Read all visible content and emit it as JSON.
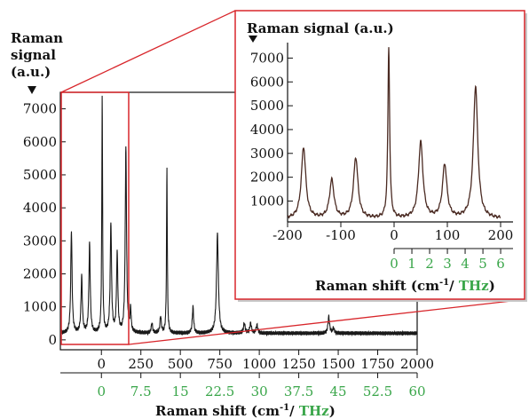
{
  "colors": {
    "main_trace": "#1a1a1a",
    "inset_trace": "#4a2a22",
    "zoom_box": "#d8262b",
    "thz_label": "#3aa64a",
    "axis": "#111111"
  },
  "chart_data": [
    {
      "type": "line",
      "id": "main",
      "ylabel_lines": [
        "Raman",
        "signal",
        "(a.u.)"
      ],
      "xlabel_prefix": "Raman shift (cm",
      "xlabel_sup": "-1",
      "xlabel_sep": "/ ",
      "xlabel_thz": "THz",
      "xlabel_close": ")",
      "xlim": [
        -260,
        2000
      ],
      "ylim": [
        -300,
        7500
      ],
      "x_ticks": [
        0,
        250,
        500,
        750,
        1000,
        1250,
        1500,
        1750,
        2000
      ],
      "y_ticks": [
        0,
        1000,
        2000,
        3000,
        4000,
        5000,
        6000,
        7000
      ],
      "thz_ticks": [
        {
          "label": "0",
          "cm": 0
        },
        {
          "label": "7.5",
          "cm": 250
        },
        {
          "label": "15",
          "cm": 500
        },
        {
          "label": "22.5",
          "cm": 750
        },
        {
          "label": "30",
          "cm": 1000
        },
        {
          "label": "37.5",
          "cm": 1250
        },
        {
          "label": "45",
          "cm": 1500
        },
        {
          "label": "52.5",
          "cm": 1750
        },
        {
          "label": "60",
          "cm": 2000
        }
      ],
      "baseline": 200,
      "peaks": [
        {
          "x": -190,
          "y": 3300,
          "w": 5
        },
        {
          "x": -125,
          "y": 1900,
          "w": 5
        },
        {
          "x": -75,
          "y": 2900,
          "w": 5
        },
        {
          "x": 5,
          "y": 7400,
          "w": 3
        },
        {
          "x": 60,
          "y": 3500,
          "w": 5
        },
        {
          "x": 100,
          "y": 2600,
          "w": 5
        },
        {
          "x": 155,
          "y": 5800,
          "w": 5
        },
        {
          "x": 185,
          "y": 900,
          "w": 4
        },
        {
          "x": 320,
          "y": 500,
          "w": 5
        },
        {
          "x": 375,
          "y": 700,
          "w": 5
        },
        {
          "x": 415,
          "y": 5200,
          "w": 3
        },
        {
          "x": 580,
          "y": 1000,
          "w": 5
        },
        {
          "x": 735,
          "y": 3200,
          "w": 7
        },
        {
          "x": 905,
          "y": 500,
          "w": 6
        },
        {
          "x": 945,
          "y": 500,
          "w": 6
        },
        {
          "x": 985,
          "y": 450,
          "w": 6
        },
        {
          "x": 1440,
          "y": 700,
          "w": 6
        },
        {
          "x": 1470,
          "y": 350,
          "w": 6
        }
      ]
    },
    {
      "type": "line",
      "id": "inset",
      "ylabel": "Raman signal (a.u.)",
      "xlabel_prefix": "Raman shift (cm",
      "xlabel_sup": "-1",
      "xlabel_sep": "/ ",
      "xlabel_thz": "THz",
      "xlabel_close": ")",
      "xlim": [
        -200,
        200
      ],
      "ylim": [
        -100,
        7500
      ],
      "x_ticks": [
        -200,
        -100,
        0,
        100,
        200
      ],
      "y_ticks": [
        1000,
        2000,
        3000,
        4000,
        5000,
        6000,
        7000
      ],
      "thz_ticks": [
        {
          "label": "0",
          "cm": 0
        },
        {
          "label": "1",
          "cm": 33.4
        },
        {
          "label": "2",
          "cm": 66.7
        },
        {
          "label": "3",
          "cm": 100.1
        },
        {
          "label": "4",
          "cm": 133.4
        },
        {
          "label": "5",
          "cm": 166.8
        },
        {
          "label": "6",
          "cm": 200.1
        }
      ],
      "baseline": 250,
      "peaks": [
        {
          "x": -170,
          "y": 3250,
          "w": 5
        },
        {
          "x": -117,
          "y": 1850,
          "w": 5
        },
        {
          "x": -72,
          "y": 2800,
          "w": 5
        },
        {
          "x": -10,
          "y": 7400,
          "w": 2
        },
        {
          "x": 50,
          "y": 3450,
          "w": 5
        },
        {
          "x": 95,
          "y": 2500,
          "w": 5
        },
        {
          "x": 153,
          "y": 5800,
          "w": 5
        }
      ]
    }
  ]
}
